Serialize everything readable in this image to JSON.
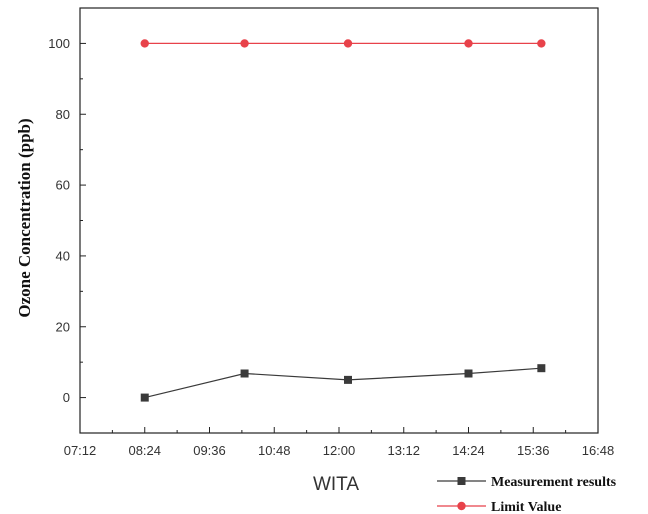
{
  "chart_data": {
    "type": "line",
    "title": "",
    "xlabel": "WITA",
    "ylabel": "Ozone Concentration  (ppb)",
    "x_ticks": [
      "07:12",
      "08:24",
      "09:36",
      "10:48",
      "12:00",
      "13:12",
      "14:24",
      "15:36",
      "16:48"
    ],
    "x_range": [
      "07:12",
      "16:48"
    ],
    "y_ticks": [
      0,
      20,
      40,
      60,
      80,
      100
    ],
    "ylim": [
      -10,
      110
    ],
    "grid": false,
    "legend_position": "bottom-right",
    "series": [
      {
        "name": "Measurement results",
        "color": "#3a3a3a",
        "marker": "square",
        "points": [
          {
            "x": "08:24",
            "y": 0
          },
          {
            "x": "10:15",
            "y": 6.8
          },
          {
            "x": "12:10",
            "y": 5
          },
          {
            "x": "14:24",
            "y": 6.8
          },
          {
            "x": "15:45",
            "y": 8.3
          }
        ]
      },
      {
        "name": "Limit Value",
        "color": "#e8424a",
        "marker": "circle",
        "points": [
          {
            "x": "08:24",
            "y": 100
          },
          {
            "x": "10:15",
            "y": 100
          },
          {
            "x": "12:10",
            "y": 100
          },
          {
            "x": "14:24",
            "y": 100
          },
          {
            "x": "15:45",
            "y": 100
          }
        ]
      }
    ]
  }
}
